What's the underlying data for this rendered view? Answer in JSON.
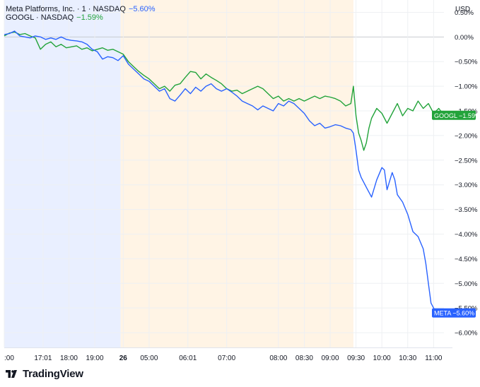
{
  "legend": {
    "series1": {
      "label": "Meta Platforms, Inc. · 1 · NASDAQ",
      "change": "−5.60%"
    },
    "series2": {
      "label": "GOOGL · NASDAQ",
      "change": "−1.59%"
    }
  },
  "brand": "TradingView",
  "colors": {
    "meta": "#2962ff",
    "googl": "#22a33a",
    "axis_text": "#131722",
    "grid": "#eef0f3",
    "zero_line": "#c8cbd1"
  },
  "chart_data": {
    "type": "line",
    "y_unit": "USD",
    "ylim": [
      -6.3,
      0.75
    ],
    "y_ticks": [
      "0.50%",
      "0.00%",
      "−0.50%",
      "−1.00%",
      "−1.50%",
      "−2.00%",
      "−2.50%",
      "−3.00%",
      "−3.50%",
      "−4.00%",
      "−4.50%",
      "−5.00%",
      "−5.50%",
      "−6.00%"
    ],
    "y_tick_values": [
      0.5,
      0.0,
      -0.5,
      -1.0,
      -1.5,
      -2.0,
      -2.5,
      -3.0,
      -3.5,
      -4.0,
      -4.5,
      -5.0,
      -5.5,
      -6.0
    ],
    "x_ticks": [
      ":00",
      "17:01",
      "18:00",
      "19:00",
      "26",
      "05:00",
      "06:01",
      "07:00",
      "08:00",
      "08:30",
      "09:00",
      "09:30",
      "10:00",
      "10:30",
      "11:00"
    ],
    "x_tick_index": [
      0,
      15,
      25,
      35,
      46,
      56,
      71,
      86,
      106,
      116,
      126,
      136,
      146,
      156,
      166
    ],
    "x_index_range": [
      0,
      170
    ],
    "sessions": [
      {
        "name": "post-market",
        "color": "#e9efff",
        "from": 0,
        "to": 45
      },
      {
        "name": "pre-market",
        "color": "#fff4e5",
        "from": 45,
        "to": 135
      }
    ],
    "series": [
      {
        "name": "META",
        "badge": "META",
        "last_label": "−5.60%",
        "color": "#2962ff",
        "points": [
          [
            0,
            0.05
          ],
          [
            2,
            0.07
          ],
          [
            4,
            0.12
          ],
          [
            6,
            0.02
          ],
          [
            8,
            0.0
          ],
          [
            10,
            -0.02
          ],
          [
            12,
            0.02
          ],
          [
            14,
            0.0
          ],
          [
            16,
            -0.05
          ],
          [
            18,
            -0.02
          ],
          [
            20,
            -0.05
          ],
          [
            22,
            0.0
          ],
          [
            24,
            -0.05
          ],
          [
            26,
            -0.07
          ],
          [
            28,
            -0.08
          ],
          [
            30,
            -0.1
          ],
          [
            32,
            -0.15
          ],
          [
            34,
            -0.25
          ],
          [
            36,
            -0.3
          ],
          [
            38,
            -0.45
          ],
          [
            40,
            -0.4
          ],
          [
            42,
            -0.42
          ],
          [
            44,
            -0.48
          ],
          [
            46,
            -0.38
          ],
          [
            48,
            -0.55
          ],
          [
            50,
            -0.65
          ],
          [
            52,
            -0.75
          ],
          [
            54,
            -0.85
          ],
          [
            56,
            -0.9
          ],
          [
            58,
            -1.0
          ],
          [
            60,
            -1.1
          ],
          [
            62,
            -1.05
          ],
          [
            64,
            -1.25
          ],
          [
            66,
            -1.3
          ],
          [
            68,
            -1.18
          ],
          [
            70,
            -1.05
          ],
          [
            72,
            -1.15
          ],
          [
            74,
            -1.02
          ],
          [
            76,
            -1.1
          ],
          [
            78,
            -1.0
          ],
          [
            80,
            -0.95
          ],
          [
            82,
            -1.05
          ],
          [
            84,
            -1.1
          ],
          [
            86,
            -1.05
          ],
          [
            88,
            -1.12
          ],
          [
            90,
            -1.2
          ],
          [
            92,
            -1.3
          ],
          [
            94,
            -1.35
          ],
          [
            96,
            -1.4
          ],
          [
            98,
            -1.48
          ],
          [
            100,
            -1.4
          ],
          [
            102,
            -1.45
          ],
          [
            104,
            -1.5
          ],
          [
            106,
            -1.35
          ],
          [
            108,
            -1.4
          ],
          [
            110,
            -1.3
          ],
          [
            112,
            -1.35
          ],
          [
            114,
            -1.45
          ],
          [
            116,
            -1.55
          ],
          [
            118,
            -1.7
          ],
          [
            120,
            -1.8
          ],
          [
            122,
            -1.75
          ],
          [
            124,
            -1.85
          ],
          [
            126,
            -1.82
          ],
          [
            128,
            -1.78
          ],
          [
            130,
            -1.8
          ],
          [
            132,
            -1.85
          ],
          [
            134,
            -1.88
          ],
          [
            135,
            -1.95
          ],
          [
            136,
            -2.3
          ],
          [
            137,
            -2.7
          ],
          [
            138,
            -2.85
          ],
          [
            140,
            -3.05
          ],
          [
            142,
            -3.25
          ],
          [
            144,
            -2.9
          ],
          [
            146,
            -2.65
          ],
          [
            147,
            -2.7
          ],
          [
            148,
            -3.1
          ],
          [
            150,
            -2.75
          ],
          [
            151,
            -2.9
          ],
          [
            152,
            -3.2
          ],
          [
            154,
            -3.35
          ],
          [
            156,
            -3.6
          ],
          [
            158,
            -3.95
          ],
          [
            160,
            -4.05
          ],
          [
            162,
            -4.3
          ],
          [
            163,
            -4.6
          ],
          [
            164,
            -5.0
          ],
          [
            165,
            -5.4
          ],
          [
            166,
            -5.5
          ],
          [
            167,
            -5.62
          ],
          [
            168,
            -5.55
          ],
          [
            169,
            -5.6
          ],
          [
            170,
            -5.6
          ]
        ]
      },
      {
        "name": "GOOGL",
        "badge": "GOOGL",
        "last_label": "−1.59%",
        "color": "#22a33a",
        "points": [
          [
            0,
            0.02
          ],
          [
            2,
            0.08
          ],
          [
            4,
            0.1
          ],
          [
            6,
            0.05
          ],
          [
            8,
            0.07
          ],
          [
            10,
            0.02
          ],
          [
            12,
            -0.02
          ],
          [
            14,
            -0.25
          ],
          [
            16,
            -0.15
          ],
          [
            18,
            -0.1
          ],
          [
            20,
            -0.2
          ],
          [
            22,
            -0.15
          ],
          [
            24,
            -0.22
          ],
          [
            26,
            -0.2
          ],
          [
            28,
            -0.18
          ],
          [
            30,
            -0.25
          ],
          [
            32,
            -0.22
          ],
          [
            34,
            -0.28
          ],
          [
            36,
            -0.25
          ],
          [
            38,
            -0.22
          ],
          [
            40,
            -0.27
          ],
          [
            42,
            -0.25
          ],
          [
            44,
            -0.3
          ],
          [
            46,
            -0.35
          ],
          [
            48,
            -0.5
          ],
          [
            50,
            -0.6
          ],
          [
            52,
            -0.7
          ],
          [
            54,
            -0.78
          ],
          [
            56,
            -0.85
          ],
          [
            58,
            -0.95
          ],
          [
            60,
            -1.05
          ],
          [
            62,
            -1.0
          ],
          [
            64,
            -1.1
          ],
          [
            66,
            -0.98
          ],
          [
            68,
            -0.95
          ],
          [
            70,
            -0.82
          ],
          [
            72,
            -0.7
          ],
          [
            74,
            -0.72
          ],
          [
            76,
            -0.85
          ],
          [
            78,
            -0.75
          ],
          [
            80,
            -0.82
          ],
          [
            82,
            -0.88
          ],
          [
            84,
            -0.95
          ],
          [
            86,
            -1.05
          ],
          [
            88,
            -1.1
          ],
          [
            90,
            -1.08
          ],
          [
            92,
            -1.15
          ],
          [
            94,
            -1.1
          ],
          [
            96,
            -1.05
          ],
          [
            98,
            -1.0
          ],
          [
            100,
            -1.05
          ],
          [
            102,
            -1.15
          ],
          [
            104,
            -1.25
          ],
          [
            106,
            -1.2
          ],
          [
            108,
            -1.3
          ],
          [
            110,
            -1.25
          ],
          [
            112,
            -1.3
          ],
          [
            114,
            -1.25
          ],
          [
            116,
            -1.3
          ],
          [
            118,
            -1.25
          ],
          [
            120,
            -1.2
          ],
          [
            122,
            -1.25
          ],
          [
            124,
            -1.2
          ],
          [
            126,
            -1.22
          ],
          [
            128,
            -1.25
          ],
          [
            130,
            -1.3
          ],
          [
            132,
            -1.4
          ],
          [
            134,
            -1.35
          ],
          [
            135,
            -1.0
          ],
          [
            136,
            -1.6
          ],
          [
            137,
            -1.95
          ],
          [
            138,
            -2.1
          ],
          [
            139,
            -2.3
          ],
          [
            140,
            -2.15
          ],
          [
            141,
            -1.85
          ],
          [
            142,
            -1.65
          ],
          [
            144,
            -1.45
          ],
          [
            146,
            -1.55
          ],
          [
            148,
            -1.75
          ],
          [
            150,
            -1.55
          ],
          [
            152,
            -1.35
          ],
          [
            154,
            -1.6
          ],
          [
            156,
            -1.45
          ],
          [
            158,
            -1.5
          ],
          [
            160,
            -1.3
          ],
          [
            162,
            -1.45
          ],
          [
            164,
            -1.35
          ],
          [
            166,
            -1.55
          ],
          [
            168,
            -1.45
          ],
          [
            170,
            -1.59
          ]
        ]
      }
    ]
  }
}
